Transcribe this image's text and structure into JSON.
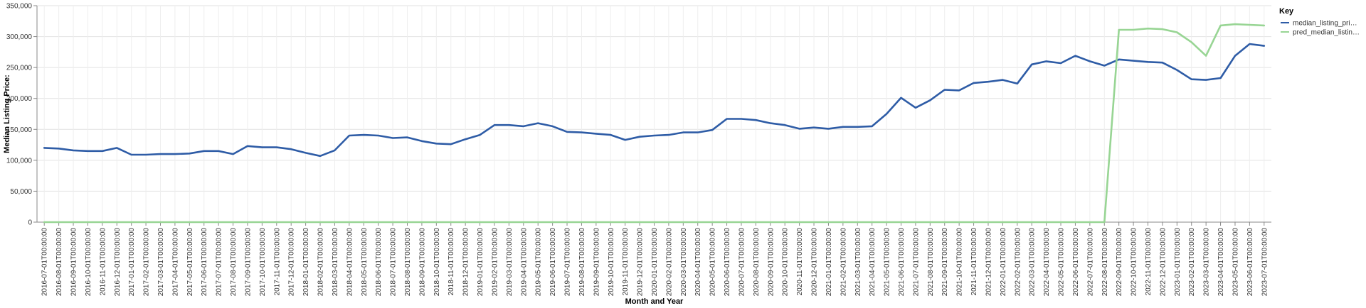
{
  "chart_data": {
    "type": "line",
    "xlabel": "Month and Year",
    "ylabel": "Median Listing Price:",
    "ylim": [
      0,
      350000
    ],
    "y_ticks": [
      "0",
      "50,000",
      "100,000",
      "150,000",
      "200,000",
      "250,000",
      "300,000",
      "350,000"
    ],
    "grid": true,
    "legend_position": "right",
    "legend_title": "Key",
    "x": [
      "2016-07-01T00:00:00",
      "2016-08-01T00:00:00",
      "2016-09-01T00:00:00",
      "2016-10-01T00:00:00",
      "2016-11-01T00:00:00",
      "2016-12-01T00:00:00",
      "2017-01-01T00:00:00",
      "2017-02-01T00:00:00",
      "2017-03-01T00:00:00",
      "2017-04-01T00:00:00",
      "2017-05-01T00:00:00",
      "2017-06-01T00:00:00",
      "2017-07-01T00:00:00",
      "2017-08-01T00:00:00",
      "2017-09-01T00:00:00",
      "2017-10-01T00:00:00",
      "2017-11-01T00:00:00",
      "2017-12-01T00:00:00",
      "2018-01-01T00:00:00",
      "2018-02-01T00:00:00",
      "2018-03-01T00:00:00",
      "2018-04-01T00:00:00",
      "2018-05-01T00:00:00",
      "2018-06-01T00:00:00",
      "2018-07-01T00:00:00",
      "2018-08-01T00:00:00",
      "2018-09-01T00:00:00",
      "2018-10-01T00:00:00",
      "2018-11-01T00:00:00",
      "2018-12-01T00:00:00",
      "2019-01-01T00:00:00",
      "2019-02-01T00:00:00",
      "2019-03-01T00:00:00",
      "2019-04-01T00:00:00",
      "2019-05-01T00:00:00",
      "2019-06-01T00:00:00",
      "2019-07-01T00:00:00",
      "2019-08-01T00:00:00",
      "2019-09-01T00:00:00",
      "2019-10-01T00:00:00",
      "2019-11-01T00:00:00",
      "2019-12-01T00:00:00",
      "2020-01-01T00:00:00",
      "2020-02-01T00:00:00",
      "2020-03-01T00:00:00",
      "2020-04-01T00:00:00",
      "2020-05-01T00:00:00",
      "2020-06-01T00:00:00",
      "2020-07-01T00:00:00",
      "2020-08-01T00:00:00",
      "2020-09-01T00:00:00",
      "2020-10-01T00:00:00",
      "2020-11-01T00:00:00",
      "2020-12-01T00:00:00",
      "2021-01-01T00:00:00",
      "2021-02-01T00:00:00",
      "2021-03-01T00:00:00",
      "2021-04-01T00:00:00",
      "2021-05-01T00:00:00",
      "2021-06-01T00:00:00",
      "2021-07-01T00:00:00",
      "2021-08-01T00:00:00",
      "2021-09-01T00:00:00",
      "2021-10-01T00:00:00",
      "2021-11-01T00:00:00",
      "2021-12-01T00:00:00",
      "2022-01-01T00:00:00",
      "2022-02-01T00:00:00",
      "2022-03-01T00:00:00",
      "2022-04-01T00:00:00",
      "2022-05-01T00:00:00",
      "2022-06-01T00:00:00",
      "2022-07-01T00:00:00",
      "2022-08-01T00:00:00",
      "2022-09-01T00:00:00",
      "2022-10-01T00:00:00",
      "2022-11-01T00:00:00",
      "2022-12-01T00:00:00",
      "2023-01-01T00:00:00",
      "2023-02-01T00:00:00",
      "2023-03-01T00:00:00",
      "2023-04-01T00:00:00",
      "2023-05-01T00:00:00",
      "2023-06-01T00:00:00",
      "2023-07-01T00:00:00"
    ],
    "series": [
      {
        "name": "median_listing_pri…",
        "color": "#2e5ca6",
        "values": [
          120000,
          119000,
          116000,
          115000,
          115000,
          120000,
          109000,
          109000,
          110000,
          110000,
          111000,
          115000,
          115000,
          110000,
          123000,
          121000,
          121000,
          118000,
          112000,
          107000,
          116000,
          140000,
          141000,
          140000,
          136000,
          137000,
          131000,
          127000,
          126000,
          134000,
          141000,
          157000,
          157000,
          155000,
          160000,
          155000,
          146000,
          145000,
          143000,
          141000,
          133000,
          138000,
          140000,
          141000,
          145000,
          145000,
          149000,
          167000,
          167000,
          165000,
          160000,
          157000,
          151000,
          153000,
          151000,
          154000,
          154000,
          155000,
          175000,
          201000,
          185000,
          197000,
          214000,
          213000,
          225000,
          227000,
          230000,
          224000,
          255000,
          260000,
          257000,
          269000,
          260000,
          253000,
          263000,
          261000,
          259000,
          258000,
          246000,
          231000,
          230000,
          233000,
          269000,
          288000,
          285000
        ]
      },
      {
        "name": "pred_median_listin…",
        "color": "#98d594",
        "values": [
          0,
          0,
          0,
          0,
          0,
          0,
          0,
          0,
          0,
          0,
          0,
          0,
          0,
          0,
          0,
          0,
          0,
          0,
          0,
          0,
          0,
          0,
          0,
          0,
          0,
          0,
          0,
          0,
          0,
          0,
          0,
          0,
          0,
          0,
          0,
          0,
          0,
          0,
          0,
          0,
          0,
          0,
          0,
          0,
          0,
          0,
          0,
          0,
          0,
          0,
          0,
          0,
          0,
          0,
          0,
          0,
          0,
          0,
          0,
          0,
          0,
          0,
          0,
          0,
          0,
          0,
          0,
          0,
          0,
          0,
          0,
          0,
          0,
          0,
          311000,
          311000,
          313000,
          312000,
          307000,
          291000,
          269000,
          318000,
          320000,
          319000,
          318000
        ]
      }
    ]
  }
}
